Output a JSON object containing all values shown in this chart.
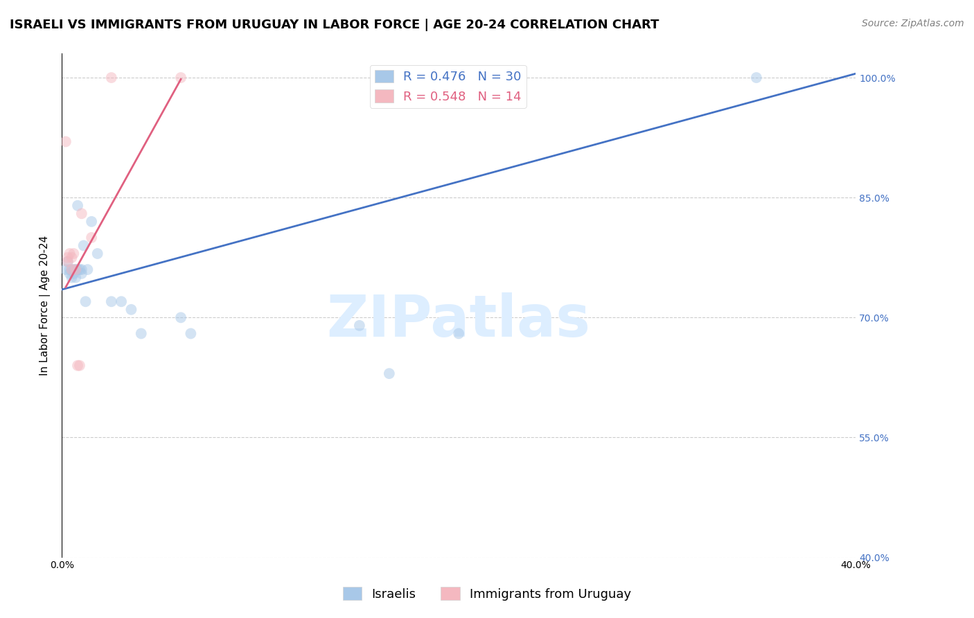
{
  "title": "ISRAELI VS IMMIGRANTS FROM URUGUAY IN LABOR FORCE | AGE 20-24 CORRELATION CHART",
  "source": "Source: ZipAtlas.com",
  "ylabel": "In Labor Force | Age 20-24",
  "xlim": [
    0.0,
    0.4
  ],
  "ylim": [
    0.4,
    1.03
  ],
  "xtick_positions": [
    0.0,
    0.05,
    0.1,
    0.15,
    0.2,
    0.25,
    0.3,
    0.35,
    0.4
  ],
  "xtick_labels": [
    "0.0%",
    "",
    "",
    "",
    "",
    "",
    "",
    "",
    "40.0%"
  ],
  "ytick_vals": [
    1.0,
    0.85,
    0.7,
    0.55,
    0.4
  ],
  "ytick_labels": [
    "100.0%",
    "85.0%",
    "70.0%",
    "55.0%",
    "40.0%"
  ],
  "legend_blue_r": "R = 0.476",
  "legend_blue_n": "N = 30",
  "legend_pink_r": "R = 0.548",
  "legend_pink_n": "N = 14",
  "blue_color": "#a8c8e8",
  "pink_color": "#f4b8c0",
  "blue_line_color": "#4472c4",
  "pink_line_color": "#e06080",
  "watermark": "ZIPatlas",
  "watermark_color": "#ddeeff",
  "israelis_x": [
    0.002,
    0.003,
    0.004,
    0.004,
    0.005,
    0.005,
    0.006,
    0.006,
    0.007,
    0.007,
    0.008,
    0.008,
    0.009,
    0.01,
    0.01,
    0.011,
    0.012,
    0.013,
    0.015,
    0.018,
    0.025,
    0.03,
    0.035,
    0.04,
    0.06,
    0.065,
    0.15,
    0.165,
    0.2,
    0.35
  ],
  "israelis_y": [
    0.76,
    0.77,
    0.755,
    0.76,
    0.76,
    0.75,
    0.76,
    0.755,
    0.75,
    0.76,
    0.84,
    0.76,
    0.76,
    0.76,
    0.755,
    0.79,
    0.72,
    0.76,
    0.82,
    0.78,
    0.72,
    0.72,
    0.71,
    0.68,
    0.7,
    0.68,
    0.69,
    0.63,
    0.68,
    1.0
  ],
  "uruguay_x": [
    0.002,
    0.003,
    0.003,
    0.004,
    0.005,
    0.005,
    0.006,
    0.007,
    0.008,
    0.009,
    0.01,
    0.015,
    0.025,
    0.06
  ],
  "uruguay_y": [
    0.92,
    0.77,
    0.775,
    0.78,
    0.775,
    0.76,
    0.78,
    0.76,
    0.64,
    0.64,
    0.83,
    0.8,
    1.0,
    1.0
  ],
  "title_fontsize": 13,
  "axis_label_fontsize": 11,
  "tick_fontsize": 10,
  "legend_fontsize": 13,
  "source_fontsize": 10,
  "watermark_fontsize": 60,
  "dot_size": 130,
  "dot_alpha": 0.5,
  "background_color": "#ffffff",
  "grid_color": "#cccccc",
  "grid_style": "--",
  "blue_trend_x": [
    0.0,
    0.4
  ],
  "blue_trend_y": [
    0.735,
    1.005
  ],
  "pink_trend_x": [
    0.002,
    0.06
  ],
  "pink_trend_y": [
    0.738,
    0.998
  ]
}
